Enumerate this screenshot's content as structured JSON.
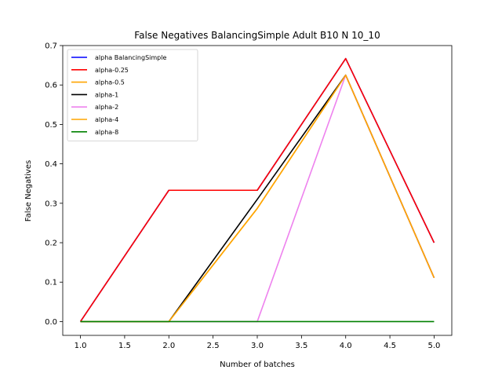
{
  "chart_data": {
    "type": "line",
    "title": "False Negatives BalancingSimple Adult B10 N 10_10",
    "xlabel": "Number of batches",
    "ylabel": "False Negatives",
    "x": [
      1.0,
      2.0,
      3.0,
      4.0,
      5.0
    ],
    "xlim": [
      0.8,
      5.2
    ],
    "ylim": [
      -0.035,
      0.7
    ],
    "xticks": [
      1.0,
      1.5,
      2.0,
      2.5,
      3.0,
      3.5,
      4.0,
      4.5,
      5.0
    ],
    "yticks": [
      0.0,
      0.1,
      0.2,
      0.3,
      0.4,
      0.5,
      0.6,
      0.7
    ],
    "xtick_labels": [
      "1.0",
      "1.5",
      "2.0",
      "2.5",
      "3.0",
      "3.5",
      "4.0",
      "4.5",
      "5.0"
    ],
    "ytick_labels": [
      "0.0",
      "0.1",
      "0.2",
      "0.3",
      "0.4",
      "0.5",
      "0.6",
      "0.7"
    ],
    "legend_position": "top-left",
    "grid": false,
    "series": [
      {
        "name": "alpha BalancingSimple",
        "color": "#0000ff",
        "values": [
          0.0,
          0.333,
          0.333,
          0.667,
          0.2
        ]
      },
      {
        "name": "alpha-0.25",
        "color": "#ff0000",
        "values": [
          0.0,
          0.333,
          0.333,
          0.667,
          0.2
        ]
      },
      {
        "name": "alpha-0.5",
        "color": "#ffa500",
        "values": [
          0.0,
          0.0,
          0.287,
          0.625,
          0.111
        ]
      },
      {
        "name": "alpha-1",
        "color": "#000000",
        "values": [
          0.0,
          0.0,
          0.31,
          0.625,
          0.111
        ]
      },
      {
        "name": "alpha-2",
        "color": "#ee82ee",
        "values": [
          0.0,
          0.0,
          0.0,
          0.625,
          0.111
        ]
      },
      {
        "name": "alpha-4",
        "color": "#ffa500",
        "values": [
          0.0,
          0.0,
          0.287,
          0.625,
          0.111
        ]
      },
      {
        "name": "alpha-8",
        "color": "#008000",
        "values": [
          0.0,
          0.0,
          0.0,
          0.0,
          0.0
        ]
      }
    ]
  }
}
